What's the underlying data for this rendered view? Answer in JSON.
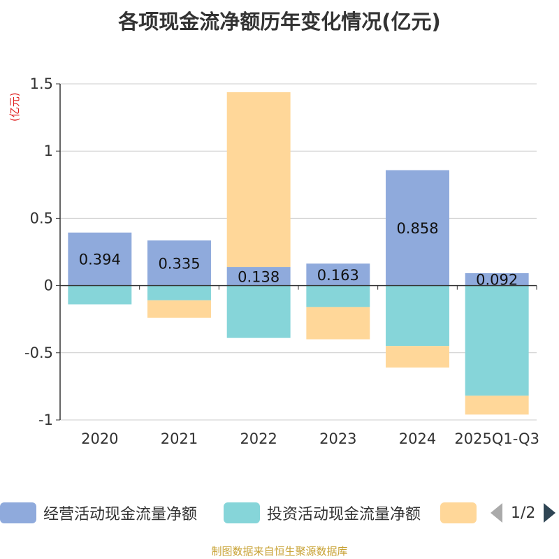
{
  "chart_data": {
    "type": "bar",
    "stacked": true,
    "title": "各项现金流净额历年变化情况(亿元)",
    "ylabel": "(亿元)",
    "xlabel": "",
    "ylim": [
      -1,
      1.5
    ],
    "yticks": [
      1.5,
      1,
      0.5,
      0,
      -0.5,
      -1
    ],
    "ytick_labels": [
      "1.5",
      "1",
      "0.5",
      "0",
      "-0.5",
      "-1"
    ],
    "categories": [
      "2020",
      "2021",
      "2022",
      "2023",
      "2024",
      "2025Q1-Q3"
    ],
    "series": [
      {
        "name": "经营活动现金流量净额",
        "color": "#8faadc",
        "values": [
          0.394,
          0.335,
          0.138,
          0.163,
          0.858,
          0.092
        ],
        "labels": [
          "0.394",
          "0.335",
          "0.138",
          "0.163",
          "0.858",
          "0.092"
        ]
      },
      {
        "name": "投资活动现金流量净额",
        "color": "#86d5d9",
        "values": [
          -0.14,
          -0.11,
          -0.39,
          -0.16,
          -0.45,
          -0.82
        ]
      },
      {
        "name": "",
        "color": "#ffd799",
        "values": [
          0,
          -0.13,
          1.3,
          -0.24,
          -0.16,
          -0.14
        ]
      }
    ],
    "grid": true,
    "legend_position": "bottom"
  },
  "legend": {
    "items": [
      {
        "label": "经营活动现金流量净额",
        "color": "#8faadc"
      },
      {
        "label": "投资活动现金流量净额",
        "color": "#86d5d9"
      },
      {
        "label": "",
        "color": "#ffd799"
      }
    ],
    "page": "1/2"
  },
  "footer": "制图数据来自恒生聚源数据库"
}
